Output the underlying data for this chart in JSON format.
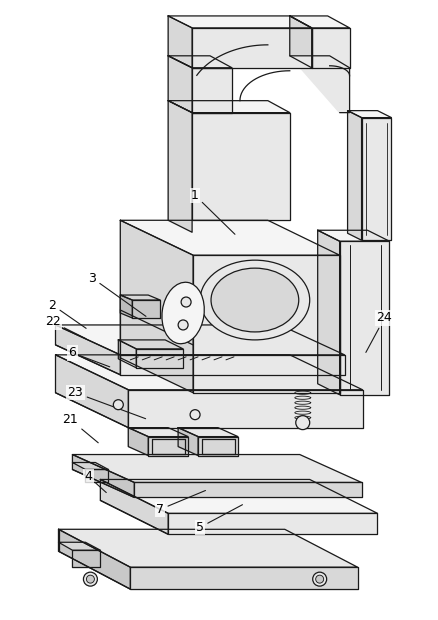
{
  "bg": "#ffffff",
  "lc": "#1a1a1a",
  "fc_light": "#f5f5f5",
  "fc_mid": "#e8e8e8",
  "fc_dark": "#d8d8d8",
  "fc_darker": "#c8c8c8",
  "lw": 0.9,
  "figsize": [
    4.38,
    6.2
  ],
  "dpi": 100,
  "annotations": [
    [
      "1",
      195,
      195,
      237,
      236
    ],
    [
      "3",
      92,
      278,
      148,
      318
    ],
    [
      "2",
      52,
      305,
      88,
      330
    ],
    [
      "22",
      52,
      322,
      88,
      340
    ],
    [
      "6",
      72,
      353,
      112,
      368
    ],
    [
      "23",
      75,
      393,
      148,
      420
    ],
    [
      "21",
      70,
      420,
      100,
      445
    ],
    [
      "4",
      88,
      477,
      108,
      495
    ],
    [
      "7",
      160,
      510,
      208,
      490
    ],
    [
      "5",
      200,
      528,
      245,
      504
    ],
    [
      "24",
      385,
      318,
      365,
      355
    ]
  ]
}
